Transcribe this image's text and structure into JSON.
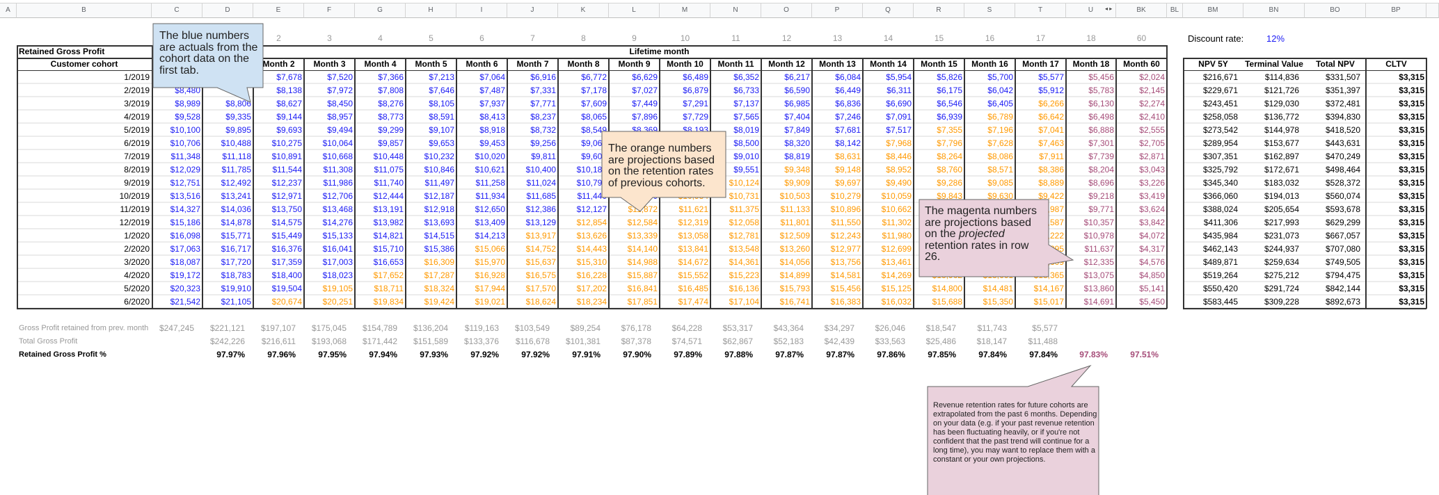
{
  "colors": {
    "actual": "#1b1bf5",
    "projection": "#ff9900",
    "projected_rate": "#a64d79",
    "muted": "#999999",
    "callout_blue": "#cfe2f3",
    "callout_orange": "#fce5cd",
    "callout_pink": "#ead1dc"
  },
  "column_letters": [
    "A",
    "B",
    "C",
    "D",
    "E",
    "F",
    "G",
    "H",
    "I",
    "J",
    "K",
    "L",
    "M",
    "N",
    "O",
    "P",
    "Q",
    "R",
    "S",
    "T",
    "U",
    "BK",
    "BL",
    "BM",
    "BN",
    "BO",
    "BP"
  ],
  "hidden_columns_icons": [
    "arrow-left-icon",
    "arrow-right-icon"
  ],
  "month_numbers": [
    "",
    "",
    "2",
    "3",
    "4",
    "5",
    "6",
    "7",
    "8",
    "9",
    "10",
    "11",
    "12",
    "13",
    "14",
    "15",
    "16",
    "17",
    "18",
    "60"
  ],
  "table": {
    "title": "Retained Gross Profit",
    "group_header": "Lifetime month",
    "cohort_header": "Customer cohort",
    "month_headers": [
      "",
      "",
      "Month 2",
      "Month 3",
      "Month 4",
      "Month 5",
      "Month 6",
      "Month 7",
      "Month 8",
      "Month 9",
      "Month 10",
      "Month 11",
      "Month 12",
      "Month 13",
      "Month 14",
      "Month 15",
      "Month 16",
      "Month 17",
      "Month 18",
      "Month 60"
    ],
    "rows": [
      {
        "cohort": "1/2019",
        "values": [
          "",
          "",
          "$7,678",
          "$7,520",
          "$7,366",
          "$7,213",
          "$7,064",
          "$6,916",
          "$6,772",
          "$6,629",
          "$6,489",
          "$6,352",
          "$6,217",
          "$6,084",
          "$5,954",
          "$5,826",
          "$5,700",
          "$5,577",
          "$5,456",
          "$2,024"
        ]
      },
      {
        "cohort": "2/2019",
        "values": [
          "$8,480",
          "",
          "$8,138",
          "$7,972",
          "$7,808",
          "$7,646",
          "$7,487",
          "$7,331",
          "$7,178",
          "$7,027",
          "$6,879",
          "$6,733",
          "$6,590",
          "$6,449",
          "$6,311",
          "$6,175",
          "$6,042",
          "$5,912",
          "$5,783",
          "$2,145"
        ]
      },
      {
        "cohort": "3/2019",
        "values": [
          "$8,989",
          "$8,806",
          "$8,627",
          "$8,450",
          "$8,276",
          "$8,105",
          "$7,937",
          "$7,771",
          "$7,609",
          "$7,449",
          "$7,291",
          "$7,137",
          "$6,985",
          "$6,836",
          "$6,690",
          "$6,546",
          "$6,405",
          "$6,266",
          "$6,130",
          "$2,274"
        ]
      },
      {
        "cohort": "4/2019",
        "values": [
          "$9,528",
          "$9,335",
          "$9,144",
          "$8,957",
          "$8,773",
          "$8,591",
          "$8,413",
          "$8,237",
          "$8,065",
          "$7,896",
          "$7,729",
          "$7,565",
          "$7,404",
          "$7,246",
          "$7,091",
          "$6,939",
          "$6,789",
          "$6,642",
          "$6,498",
          "$2,410"
        ]
      },
      {
        "cohort": "5/2019",
        "values": [
          "$10,100",
          "$9,895",
          "$9,693",
          "$9,494",
          "$9,299",
          "$9,107",
          "$8,918",
          "$8,732",
          "$8,549",
          "$8,369",
          "$8,193",
          "$8,019",
          "$7,849",
          "$7,681",
          "$7,517",
          "$7,355",
          "$7,196",
          "$7,041",
          "$6,888",
          "$2,555"
        ]
      },
      {
        "cohort": "6/2019",
        "values": [
          "$10,706",
          "$10,488",
          "$10,275",
          "$10,064",
          "$9,857",
          "$9,653",
          "$9,453",
          "$9,256",
          "$9,062",
          "",
          "",
          "$8,500",
          "$8,320",
          "$8,142",
          "$7,968",
          "$7,796",
          "$7,628",
          "$7,463",
          "$7,301",
          "$2,705"
        ]
      },
      {
        "cohort": "7/2019",
        "values": [
          "$11,348",
          "$11,118",
          "$10,891",
          "$10,668",
          "$10,448",
          "$10,232",
          "$10,020",
          "$9,811",
          "$9,605",
          "",
          "",
          "$9,010",
          "$8,819",
          "$8,631",
          "$8,446",
          "$8,264",
          "$8,086",
          "$7,911",
          "$7,739",
          "$2,871"
        ]
      },
      {
        "cohort": "8/2019",
        "values": [
          "$12,029",
          "$11,785",
          "$11,544",
          "$11,308",
          "$11,075",
          "$10,846",
          "$10,621",
          "$10,400",
          "$10,182",
          "",
          "",
          "$9,551",
          "$9,348",
          "$9,148",
          "$8,952",
          "$8,760",
          "$8,571",
          "$8,386",
          "$8,204",
          "$3,043"
        ]
      },
      {
        "cohort": "9/2019",
        "values": [
          "$12,751",
          "$12,492",
          "$12,237",
          "$11,986",
          "$11,740",
          "$11,497",
          "$11,258",
          "$11,024",
          "$10,792",
          "",
          "",
          "$10,124",
          "$9,909",
          "$9,697",
          "$9,490",
          "$9,286",
          "$9,085",
          "$8,889",
          "$8,696",
          "$3,226"
        ]
      },
      {
        "cohort": "10/2019",
        "values": [
          "$13,516",
          "$13,241",
          "$12,971",
          "$12,706",
          "$12,444",
          "$12,187",
          "$11,934",
          "$11,685",
          "$11,440",
          "$11,200",
          "$10,984",
          "$10,731",
          "$10,503",
          "$10,279",
          "$10,059",
          "$9,843",
          "$9,630",
          "$9,422",
          "$9,218",
          "$3,419"
        ]
      },
      {
        "cohort": "11/2019",
        "values": [
          "$14,327",
          "$14,036",
          "$13,750",
          "$13,468",
          "$13,191",
          "$12,918",
          "$12,650",
          "$12,386",
          "$12,127",
          "$11,872",
          "$11,621",
          "$11,375",
          "$11,133",
          "$10,896",
          "$10,662",
          "",
          "",
          "$9,987",
          "$9,771",
          "$3,624"
        ]
      },
      {
        "cohort": "12/2019",
        "values": [
          "$15,186",
          "$14,878",
          "$14,575",
          "$14,276",
          "$13,982",
          "$13,693",
          "$13,409",
          "$13,129",
          "$12,854",
          "$12,584",
          "$12,319",
          "$12,058",
          "$11,801",
          "$11,550",
          "$11,302",
          "",
          "",
          "$10,587",
          "$10,357",
          "$3,842"
        ]
      },
      {
        "cohort": "1/2020",
        "values": [
          "$16,098",
          "$15,771",
          "$15,449",
          "$15,133",
          "$14,821",
          "$14,515",
          "$14,213",
          "$13,917",
          "$13,626",
          "$13,339",
          "$13,058",
          "$12,781",
          "$12,509",
          "$12,243",
          "$11,980",
          "",
          "",
          "$11,222",
          "$10,978",
          "$4,072"
        ]
      },
      {
        "cohort": "2/2020",
        "values": [
          "$17,063",
          "$16,717",
          "$16,376",
          "$16,041",
          "$15,710",
          "$15,386",
          "$15,066",
          "$14,752",
          "$14,443",
          "$14,140",
          "$13,841",
          "$13,548",
          "$13,260",
          "$12,977",
          "$12,699",
          "",
          "",
          "$11,895",
          "$11,637",
          "$4,317"
        ]
      },
      {
        "cohort": "3/2020",
        "values": [
          "$18,087",
          "$17,720",
          "$17,359",
          "$17,003",
          "$16,653",
          "$16,309",
          "$15,970",
          "$15,637",
          "$15,310",
          "$14,988",
          "$14,672",
          "$14,361",
          "$14,056",
          "$13,756",
          "$13,461",
          "",
          "",
          "$12,609",
          "$12,335",
          "$4,576"
        ]
      },
      {
        "cohort": "4/2020",
        "values": [
          "$19,172",
          "$18,783",
          "$18,400",
          "$18,023",
          "$17,652",
          "$17,287",
          "$16,928",
          "$16,575",
          "$16,228",
          "$15,887",
          "$15,552",
          "$15,223",
          "$14,899",
          "$14,581",
          "$14,269",
          "$13,962",
          "$13,661",
          "$13,365",
          "$13,075",
          "$4,850"
        ]
      },
      {
        "cohort": "5/2020",
        "values": [
          "$20,323",
          "$19,910",
          "$19,504",
          "$19,105",
          "$18,711",
          "$18,324",
          "$17,944",
          "$17,570",
          "$17,202",
          "$16,841",
          "$16,485",
          "$16,136",
          "$15,793",
          "$15,456",
          "$15,125",
          "$14,800",
          "$14,481",
          "$14,167",
          "$13,860",
          "$5,141"
        ]
      },
      {
        "cohort": "6/2020",
        "values": [
          "$21,542",
          "$21,105",
          "$20,674",
          "$20,251",
          "$19,834",
          "$19,424",
          "$19,021",
          "$18,624",
          "$18,234",
          "$17,851",
          "$17,474",
          "$17,104",
          "$16,741",
          "$16,383",
          "$16,032",
          "$15,688",
          "$15,350",
          "$15,017",
          "$14,691",
          "$5,450"
        ]
      }
    ]
  },
  "summary": [
    {
      "label": "Gross Profit retained from prev. month",
      "values": [
        "$247,245",
        "$221,121",
        "$197,107",
        "$175,045",
        "$154,789",
        "$136,204",
        "$119,163",
        "$103,549",
        "$89,254",
        "$76,178",
        "$64,228",
        "$53,317",
        "$43,364",
        "$34,297",
        "$26,046",
        "$18,547",
        "$11,743",
        "$5,577",
        "",
        ""
      ]
    },
    {
      "label": "Total Gross Profit",
      "values": [
        "",
        "$242,226",
        "$216,611",
        "$193,068",
        "$171,442",
        "$151,589",
        "$133,376",
        "$116,678",
        "$101,381",
        "$87,378",
        "$74,571",
        "$62,867",
        "$52,183",
        "$42,439",
        "$33,563",
        "$25,486",
        "$18,147",
        "$11,488",
        "",
        ""
      ]
    },
    {
      "label": "Retained Gross Profit %",
      "values": [
        "",
        "97.97%",
        "97.96%",
        "97.95%",
        "97.94%",
        "97.93%",
        "97.92%",
        "97.92%",
        "97.91%",
        "97.90%",
        "97.89%",
        "97.88%",
        "97.87%",
        "97.87%",
        "97.86%",
        "97.85%",
        "97.84%",
        "97.84%",
        "97.83%",
        "97.51%"
      ]
    }
  ],
  "discount": {
    "label": "Discount rate:",
    "value": "12%"
  },
  "npv": {
    "headers": [
      "NPV 5Y",
      "Terminal Value",
      "Total NPV",
      "CLTV"
    ],
    "rows": [
      [
        "$216,671",
        "$114,836",
        "$331,507",
        "$3,315"
      ],
      [
        "$229,671",
        "$121,726",
        "$351,397",
        "$3,315"
      ],
      [
        "$243,451",
        "$129,030",
        "$372,481",
        "$3,315"
      ],
      [
        "$258,058",
        "$136,772",
        "$394,830",
        "$3,315"
      ],
      [
        "$273,542",
        "$144,978",
        "$418,520",
        "$3,315"
      ],
      [
        "$289,954",
        "$153,677",
        "$443,631",
        "$3,315"
      ],
      [
        "$307,351",
        "$162,897",
        "$470,249",
        "$3,315"
      ],
      [
        "$325,792",
        "$172,671",
        "$498,464",
        "$3,315"
      ],
      [
        "$345,340",
        "$183,032",
        "$528,372",
        "$3,315"
      ],
      [
        "$366,060",
        "$194,013",
        "$560,074",
        "$3,315"
      ],
      [
        "$388,024",
        "$205,654",
        "$593,678",
        "$3,315"
      ],
      [
        "$411,306",
        "$217,993",
        "$629,299",
        "$3,315"
      ],
      [
        "$435,984",
        "$231,073",
        "$667,057",
        "$3,315"
      ],
      [
        "$462,143",
        "$244,937",
        "$707,080",
        "$3,315"
      ],
      [
        "$489,871",
        "$259,634",
        "$749,505",
        "$3,315"
      ],
      [
        "$519,264",
        "$275,212",
        "$794,475",
        "$3,315"
      ],
      [
        "$550,420",
        "$291,724",
        "$842,144",
        "$3,315"
      ],
      [
        "$583,445",
        "$309,228",
        "$892,673",
        "$3,315"
      ]
    ]
  },
  "callouts": {
    "blue": "The blue numbers are actuals from the cohort data on the first tab.",
    "orange": "The orange numbers are projections based on the retention rates of previous cohorts.",
    "magenta_pre": "The magenta numbers are projections based on the ",
    "magenta_em": "projected",
    "magenta_post": " retention rates in row 26.",
    "note": "Revenue retention rates for future cohorts are extrapolated from the past 6 months. Depending on your data (e.g. if your past revenue retention has been fluctuating heavily, or if you're not confident that the past trend will continue for a long time), you may want to replace them with a constant or your own projections."
  }
}
